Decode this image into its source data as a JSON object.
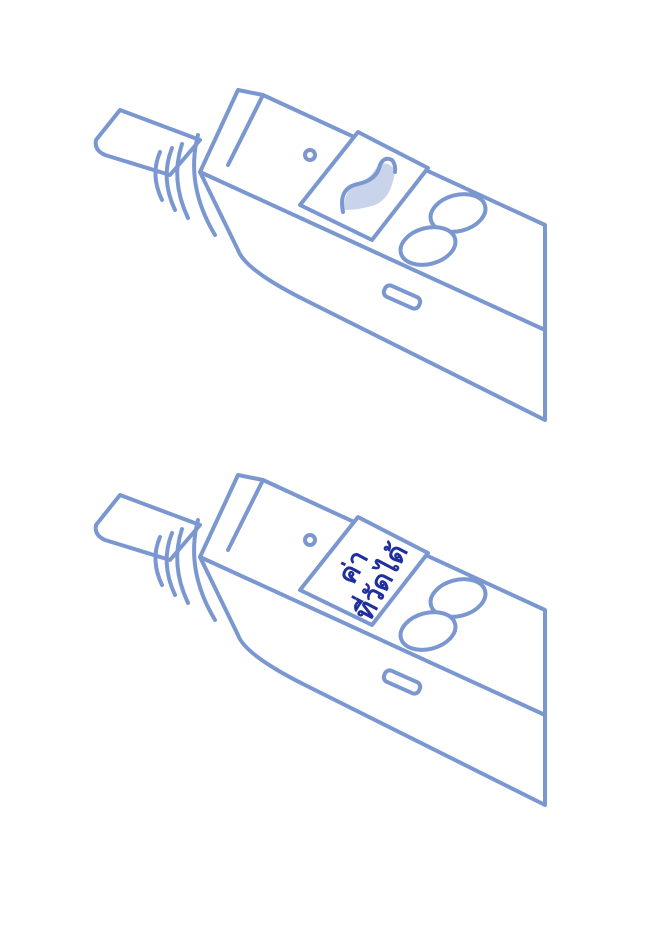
{
  "colors": {
    "line": "#7b97d0",
    "wave_fill": "#c9d3ea",
    "screen_text": "#1f2f9c"
  },
  "devices": [
    {
      "screen": "wave-icon"
    },
    {
      "screen": "text",
      "text_line1": "ค่า",
      "text_line2": "ที่วัดได้"
    }
  ]
}
